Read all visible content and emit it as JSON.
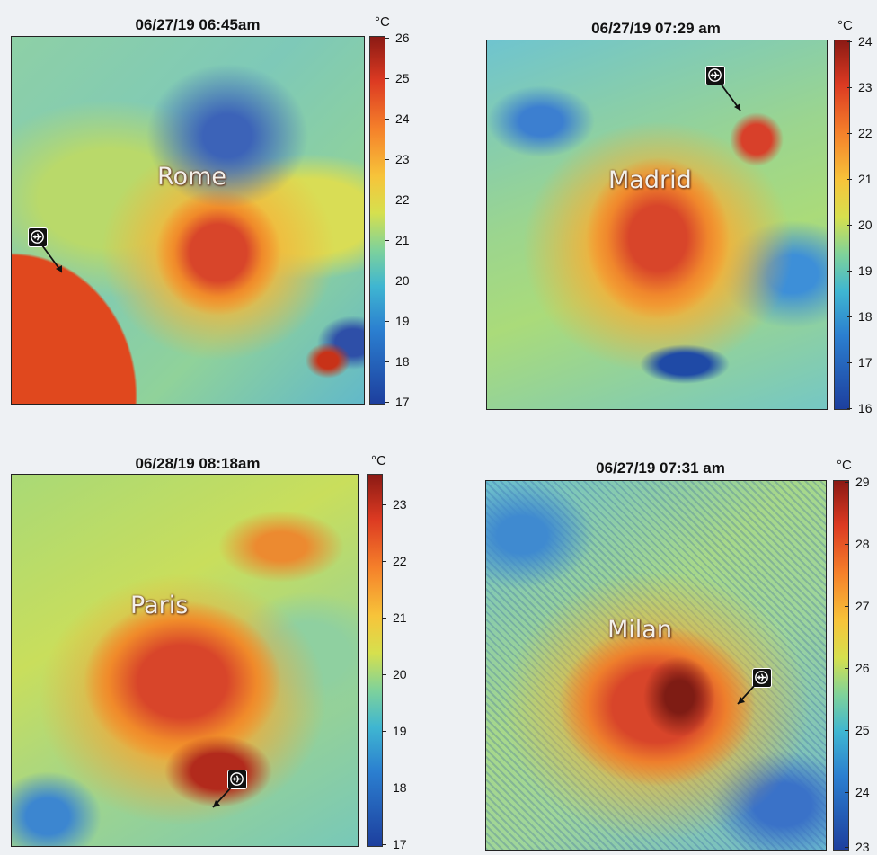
{
  "unit_label": "°C",
  "panels": [
    {
      "title": "06/27/19 06:45am",
      "city": "Rome",
      "colorbar_ticks": [
        "26",
        "25",
        "24",
        "23",
        "22",
        "21",
        "20",
        "19",
        "18",
        "17"
      ],
      "colorbar_range": [
        17,
        26
      ],
      "airport_icon": "airplane-icon"
    },
    {
      "title": "06/27/19 07:29 am",
      "city": "Madrid",
      "colorbar_ticks": [
        "24",
        "23",
        "22",
        "21",
        "20",
        "19",
        "18",
        "17",
        "16"
      ],
      "colorbar_range": [
        16,
        24
      ],
      "airport_icon": "airplane-icon"
    },
    {
      "title": "06/28/19 08:18am",
      "city": "Paris",
      "colorbar_ticks": [
        "23",
        "22",
        "21",
        "20",
        "19",
        "18",
        "17"
      ],
      "colorbar_range": [
        17,
        23.5
      ],
      "airport_icon": "airplane-icon"
    },
    {
      "title": "06/27/19 07:31 am",
      "city": "Milan",
      "colorbar_ticks": [
        "29",
        "28",
        "27",
        "26",
        "25",
        "24",
        "23"
      ],
      "colorbar_range": [
        23,
        29
      ],
      "airport_icon": "airplane-icon"
    }
  ]
}
